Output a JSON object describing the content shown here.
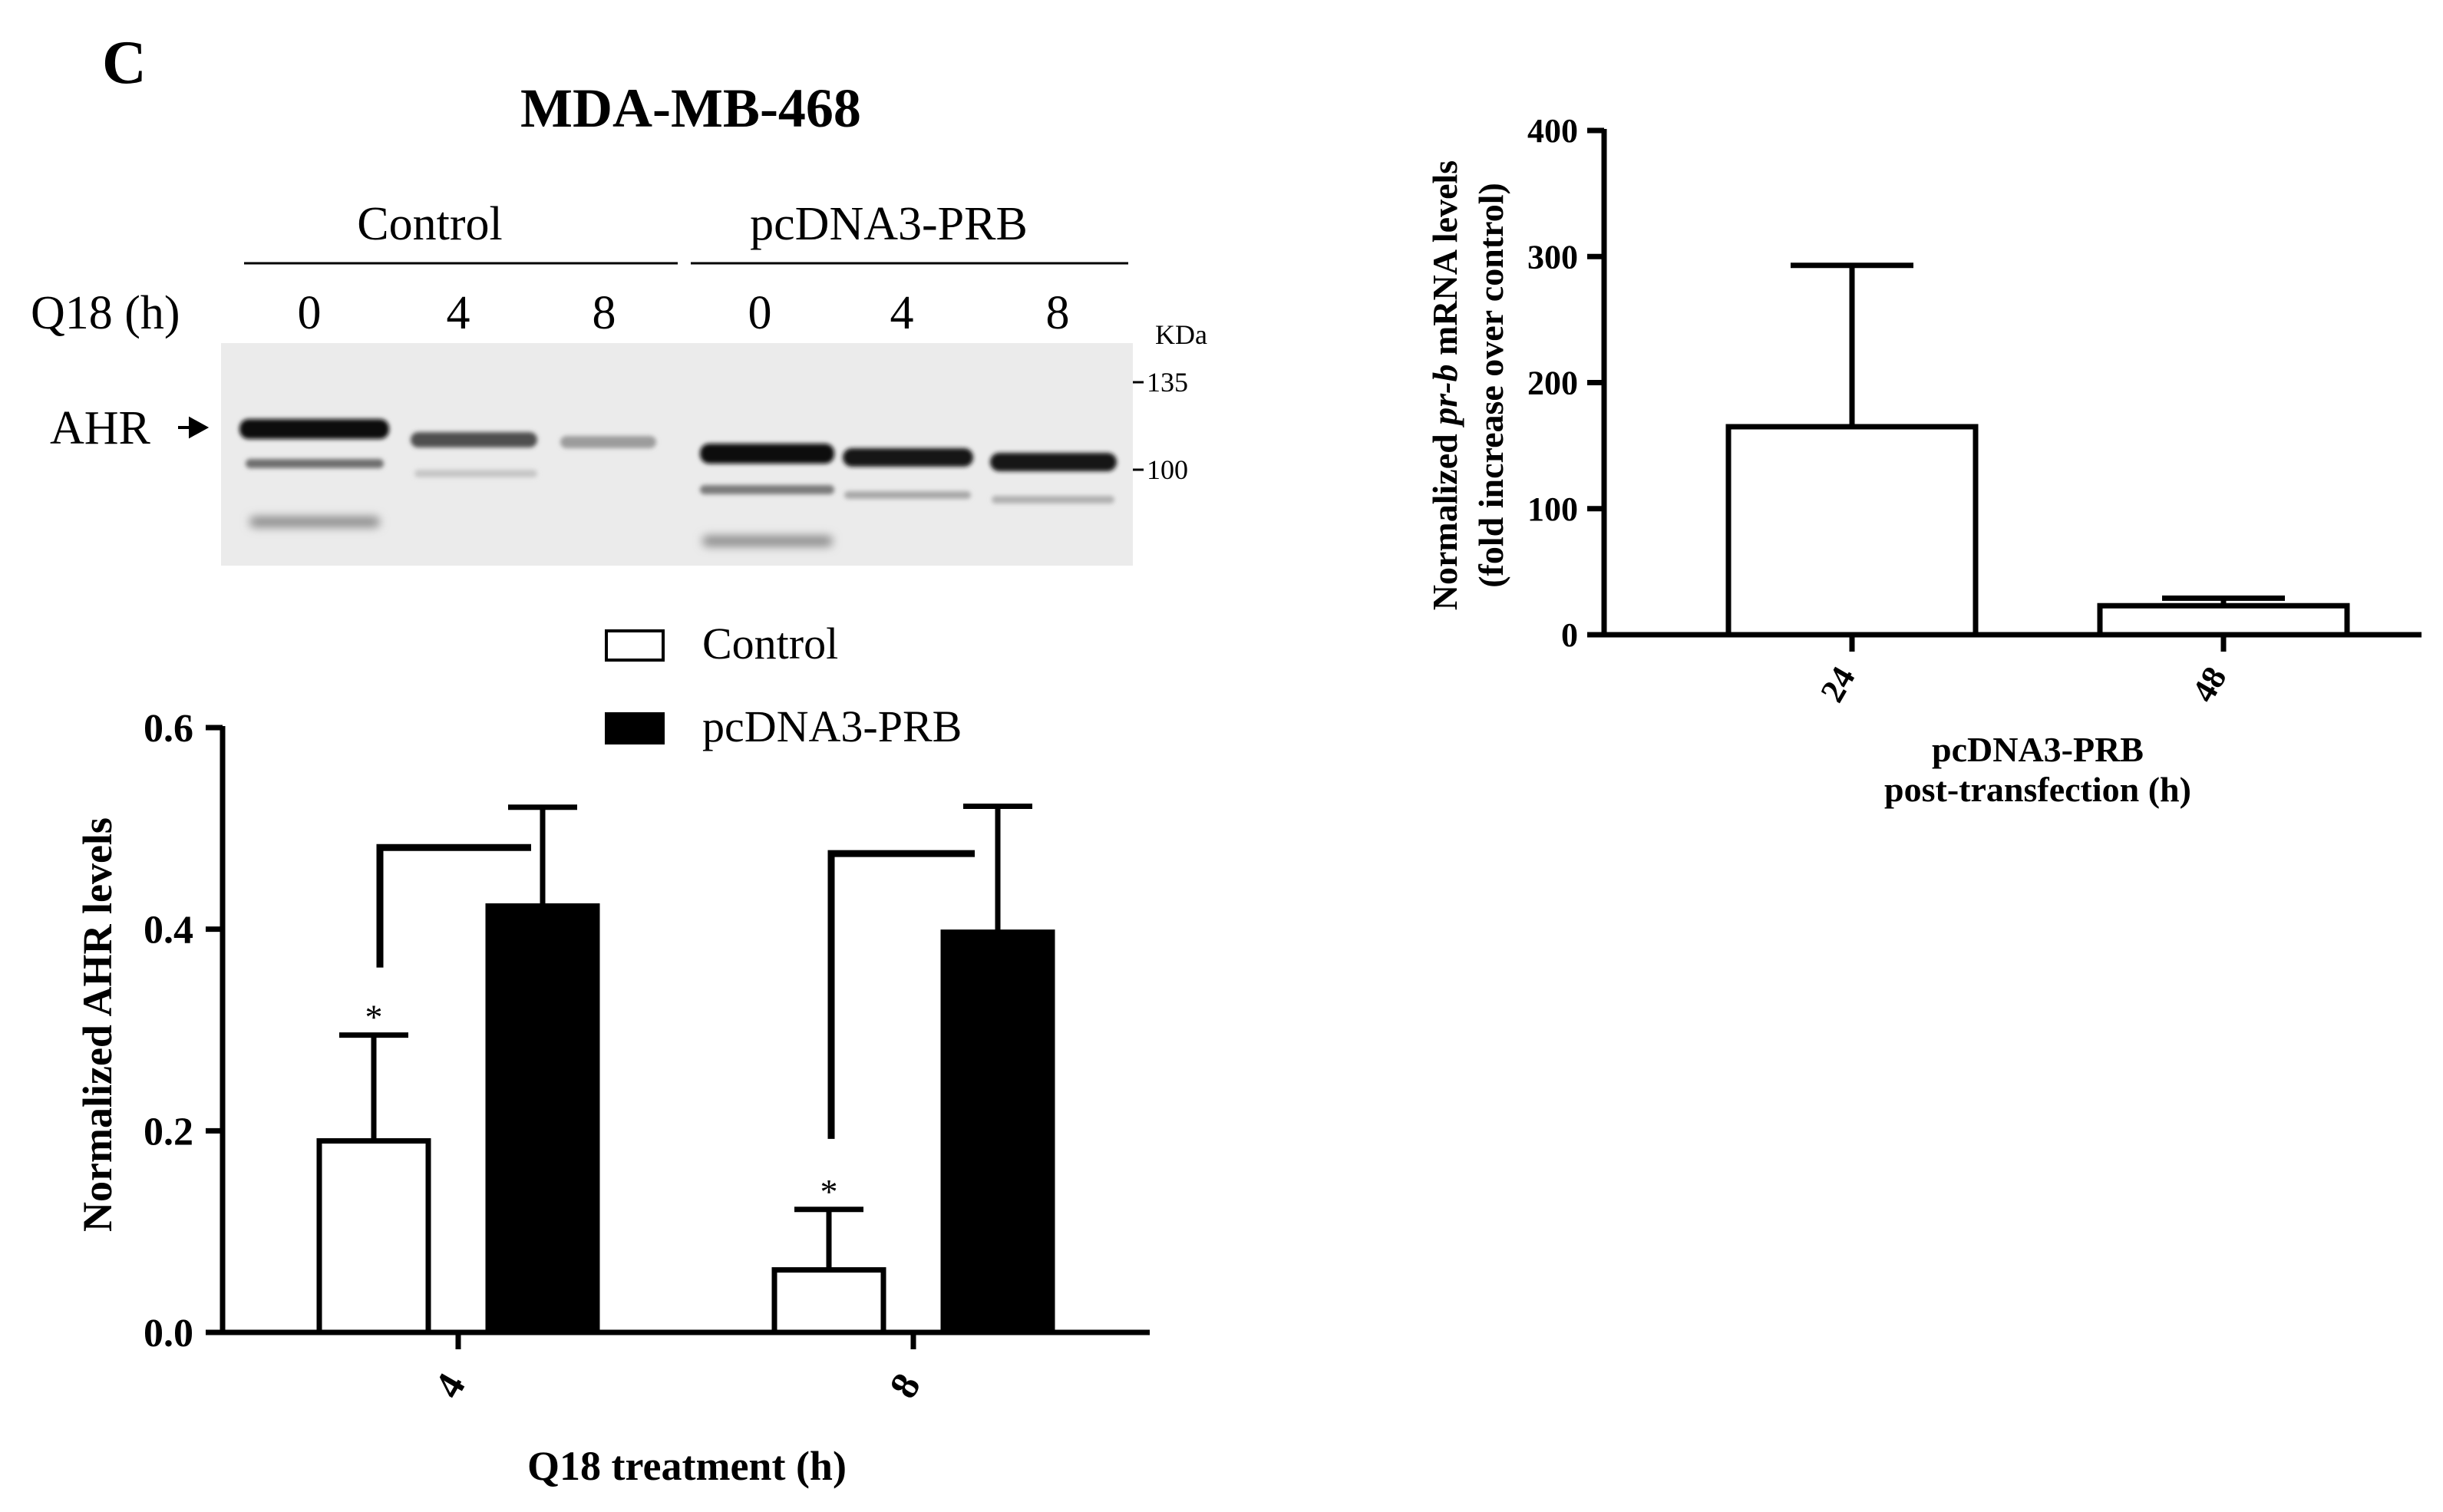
{
  "panel_label": "C",
  "cell_line_title": "MDA-MB-468",
  "blot": {
    "groups": [
      "Control",
      "pcDNA3-PRB"
    ],
    "time_label": "Q18 (h)",
    "lane_times": [
      "0",
      "4",
      "8",
      "0",
      "4",
      "8"
    ],
    "band_label": "AHR",
    "marker_unit": "KDa",
    "markers": [
      "135",
      "100"
    ]
  },
  "legend": {
    "items": [
      {
        "label": "Control",
        "fill": "#ffffff"
      },
      {
        "label": "pcDNA3-PRB",
        "fill": "#000000"
      }
    ]
  },
  "significance_mark": "*",
  "chart_data": [
    {
      "type": "bar",
      "title": "",
      "xlabel": "Q18 treatment (h)",
      "ylabel": "Normalized AHR levels",
      "ylim": [
        0,
        0.6
      ],
      "yticks": [
        "0.0",
        "0.2",
        "0.4",
        "0.6"
      ],
      "categories": [
        "4",
        "8"
      ],
      "series": [
        {
          "name": "Control",
          "values": [
            0.19,
            0.062
          ],
          "errors": [
            0.105,
            0.06
          ],
          "fill": "#ffffff"
        },
        {
          "name": "pcDNA3-PRB",
          "values": [
            0.423,
            0.397
          ],
          "errors": [
            0.098,
            0.125
          ],
          "fill": "#000000"
        }
      ],
      "annotations": [
        "*",
        "*"
      ],
      "legend": "top"
    },
    {
      "type": "bar",
      "title": "",
      "xlabel": "pcDNA3-PRB\npost-transfection (h)",
      "ylabel_parts": [
        "Normalized ",
        "pr-b",
        " mRNA levels"
      ],
      "ylabel2": "(fold increase over control)",
      "ylim": [
        0,
        400
      ],
      "yticks": [
        "0",
        "100",
        "200",
        "300",
        "400"
      ],
      "categories": [
        "24",
        "48"
      ],
      "series": [
        {
          "name": "pcDNA3-PRB",
          "values": [
            165,
            23
          ],
          "errors": [
            128,
            6
          ],
          "fill": "#ffffff"
        }
      ]
    }
  ]
}
